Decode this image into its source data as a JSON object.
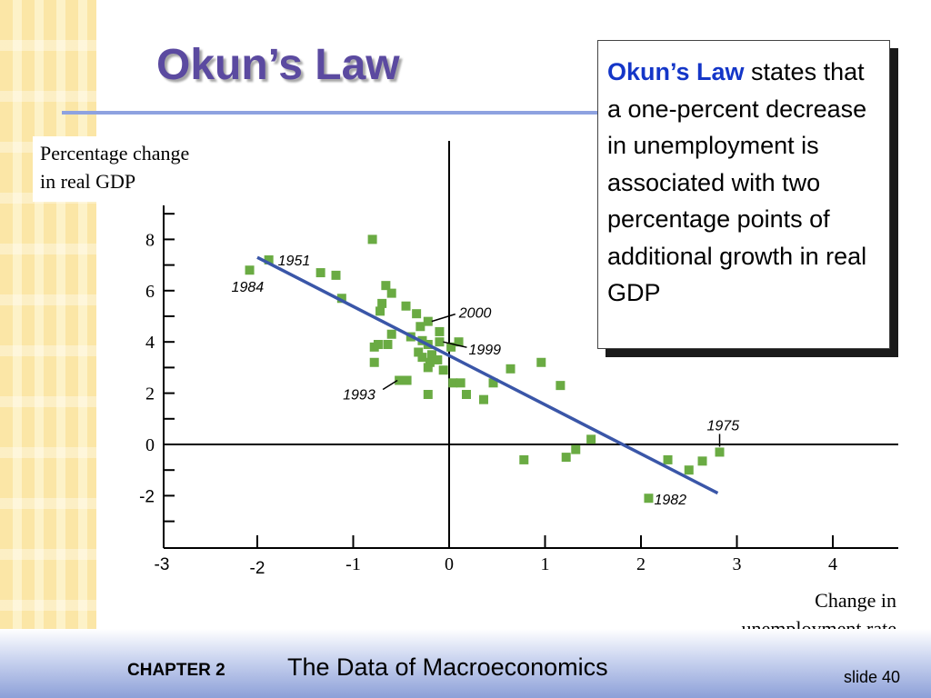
{
  "slide": {
    "title": "Okun’s Law",
    "callout_highlight": "Okun’s Law",
    "callout_rest": " states that a one-percent decrease in unemployment is associated with two percentage points of additional growth in real GDP",
    "footer_chapter": "CHAPTER 2",
    "footer_title": "The Data of Macroeconomics",
    "footer_slide": "slide 40"
  },
  "colors": {
    "title": "#5b4aa0",
    "rule": "#8ea2e0",
    "points": "#6aab43",
    "fit_line": "#3a56a8",
    "highlight": "#1436c8"
  },
  "chart_data": {
    "type": "scatter",
    "ylabel_line1": "Percentage change",
    "ylabel_line2": "in real GDP",
    "xlabel_line1": "Change in",
    "xlabel_line2": "unemployment rate",
    "x_ticks": [
      "-3",
      "-2",
      "-1",
      "0",
      "1",
      "2",
      "3",
      "4"
    ],
    "y_ticks": [
      "-2",
      "0",
      "2",
      "4",
      "6",
      "8"
    ],
    "xlim": [
      -3,
      4.6
    ],
    "ylim": [
      -4,
      9.2
    ],
    "grid": false,
    "points": [
      {
        "x": -2.08,
        "y": 6.8
      },
      {
        "x": -1.88,
        "y": 7.2
      },
      {
        "x": -1.34,
        "y": 6.7
      },
      {
        "x": -1.18,
        "y": 6.6
      },
      {
        "x": -1.12,
        "y": 5.7
      },
      {
        "x": -0.8,
        "y": 8.0
      },
      {
        "x": -0.72,
        "y": 5.2
      },
      {
        "x": -0.7,
        "y": 5.5
      },
      {
        "x": -0.66,
        "y": 6.2
      },
      {
        "x": -0.6,
        "y": 5.9
      },
      {
        "x": -0.45,
        "y": 5.4
      },
      {
        "x": -0.34,
        "y": 5.1
      },
      {
        "x": -0.22,
        "y": 4.8
      },
      {
        "x": -0.1,
        "y": 4.4
      },
      {
        "x": -0.3,
        "y": 4.6
      },
      {
        "x": -0.6,
        "y": 4.3
      },
      {
        "x": -0.78,
        "y": 3.8
      },
      {
        "x": -0.74,
        "y": 3.9
      },
      {
        "x": -0.64,
        "y": 3.9
      },
      {
        "x": -0.78,
        "y": 3.2
      },
      {
        "x": -0.4,
        "y": 4.2
      },
      {
        "x": -0.28,
        "y": 4.05
      },
      {
        "x": -0.22,
        "y": 3.9
      },
      {
        "x": -0.32,
        "y": 3.6
      },
      {
        "x": -0.28,
        "y": 3.4
      },
      {
        "x": -0.18,
        "y": 3.5
      },
      {
        "x": -0.12,
        "y": 3.3
      },
      {
        "x": -0.1,
        "y": 4.0
      },
      {
        "x": 0.02,
        "y": 3.8
      },
      {
        "x": 0.1,
        "y": 4.0
      },
      {
        "x": -0.2,
        "y": 3.2
      },
      {
        "x": -0.22,
        "y": 3.0
      },
      {
        "x": -0.06,
        "y": 2.9
      },
      {
        "x": -0.52,
        "y": 2.5
      },
      {
        "x": -0.44,
        "y": 2.5
      },
      {
        "x": 0.04,
        "y": 2.4
      },
      {
        "x": 0.12,
        "y": 2.4
      },
      {
        "x": 0.18,
        "y": 1.95
      },
      {
        "x": -0.22,
        "y": 1.95
      },
      {
        "x": 0.36,
        "y": 1.75
      },
      {
        "x": 0.46,
        "y": 2.4
      },
      {
        "x": 0.64,
        "y": 2.95
      },
      {
        "x": 0.96,
        "y": 3.2
      },
      {
        "x": 1.16,
        "y": 2.3
      },
      {
        "x": 0.78,
        "y": -0.6
      },
      {
        "x": 1.22,
        "y": -0.5
      },
      {
        "x": 1.32,
        "y": -0.2
      },
      {
        "x": 1.48,
        "y": 0.2
      },
      {
        "x": 2.08,
        "y": -2.1
      },
      {
        "x": 2.28,
        "y": -0.6
      },
      {
        "x": 2.5,
        "y": -1.0
      },
      {
        "x": 2.64,
        "y": -0.65
      },
      {
        "x": 2.82,
        "y": -0.3
      }
    ],
    "fit_line": {
      "x1": -2.0,
      "y1": 7.3,
      "x2": 2.8,
      "y2": -1.9
    },
    "annotations": [
      {
        "label": "1951",
        "x": -1.88,
        "y": 7.2
      },
      {
        "label": "1984",
        "x": -2.08,
        "y": 6.8
      },
      {
        "label": "2000",
        "x": -0.22,
        "y": 4.8
      },
      {
        "label": "1999",
        "x": -0.1,
        "y": 4.0
      },
      {
        "label": "1993",
        "x": -0.52,
        "y": 2.5
      },
      {
        "label": "1975",
        "x": 2.82,
        "y": -0.3
      },
      {
        "label": "1982",
        "x": 2.08,
        "y": -2.1
      }
    ]
  }
}
